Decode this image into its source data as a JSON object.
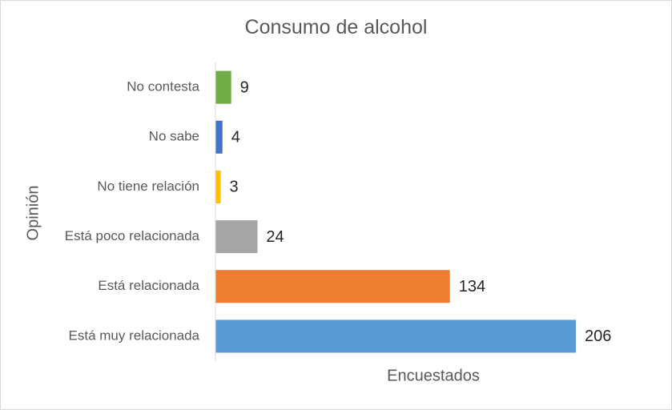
{
  "chart_data": {
    "type": "bar",
    "orientation": "horizontal",
    "title": "Consumo de alcohol",
    "xlabel": "Encuestados",
    "ylabel": "Opinión",
    "categories": [
      "No contesta",
      "No sabe",
      "No tiene relación",
      "Está poco relacionada",
      "Está relacionada",
      "Está muy relacionada"
    ],
    "values": [
      9,
      4,
      3,
      24,
      134,
      206
    ],
    "colors": [
      "#70ad47",
      "#4472c4",
      "#ffc000",
      "#a5a5a5",
      "#ed7d31",
      "#5b9bd5"
    ],
    "xlim": [
      0,
      206
    ],
    "data_labels": true,
    "grid": false,
    "legend": "none"
  }
}
